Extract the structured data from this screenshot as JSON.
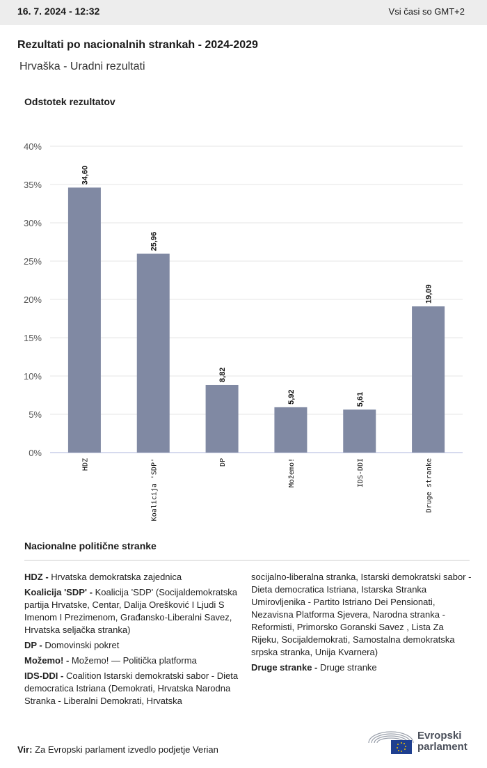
{
  "header": {
    "date": "16. 7. 2024 - 12:32",
    "timezone": "Vsi časi so GMT+2"
  },
  "title": "Rezultati po nacionalnih strankah - 2024-2029",
  "subtitle": "Hrvaška - Uradni rezultati",
  "ylabel": "Odstotek rezultatov",
  "chart_data": {
    "type": "bar",
    "categories": [
      "HDZ",
      "Koalicija 'SDP'",
      "DP",
      "Možemo!",
      "IDS-DDI",
      "Druge stranke"
    ],
    "values": [
      34.6,
      25.96,
      8.82,
      5.92,
      5.61,
      19.09
    ],
    "value_labels": [
      "34,60",
      "25,96",
      "8,82",
      "5,92",
      "5,61",
      "19,09"
    ],
    "yticks": [
      "0%",
      "5%",
      "10%",
      "15%",
      "20%",
      "25%",
      "30%",
      "35%",
      "40%"
    ],
    "ylim": [
      0,
      40
    ],
    "ylabel": "Odstotek rezultatov",
    "grid": true,
    "bar_color": "#8089a3"
  },
  "legend": {
    "title": "Nacionalne politične stranke",
    "items": [
      {
        "abbr": "HDZ -",
        "text": "Hrvatska demokratska zajednica"
      },
      {
        "abbr": "Koalicija 'SDP' -",
        "text": "Koalicija 'SDP' (Socijaldemokratska partija Hrvatske, Centar, Dalija Orešković I Ljudi S Imenom I Prezimenom, Građansko-Liberalni Savez, Hrvatska seljačka stranka)"
      },
      {
        "abbr": "DP -",
        "text": "Domovinski pokret"
      },
      {
        "abbr": "Možemo! -",
        "text": "Možemo! — Politička platforma"
      },
      {
        "abbr": "IDS-DDI -",
        "text": "Coalition Istarski demokratski sabor - Dieta democratica Istriana (Demokrati, Hrvatska Narodna Stranka - Liberalni Demokrati, Hrvatska"
      },
      {
        "abbr": "",
        "text": "socijalno-liberalna stranka, Istarski demokratski sabor - Dieta democratica Istriana, Istarska Stranka Umirovljenika - Partito Istriano Dei Pensionati, Nezavisna Platforma Sjevera, Narodna stranka - Reformisti, Primorsko Goranski Savez , Lista Za Rijeku, Socijaldemokrati, Samostalna demokratska srpska stranka, Unija Kvarnera)"
      },
      {
        "abbr": "Druge stranke -",
        "text": "Druge stranke"
      }
    ]
  },
  "source": {
    "label": "Vir:",
    "text": "Za Evropski parlament izvedlo podjetje Verian"
  },
  "logo": {
    "line1": "Evropski",
    "line2": "parlament"
  }
}
